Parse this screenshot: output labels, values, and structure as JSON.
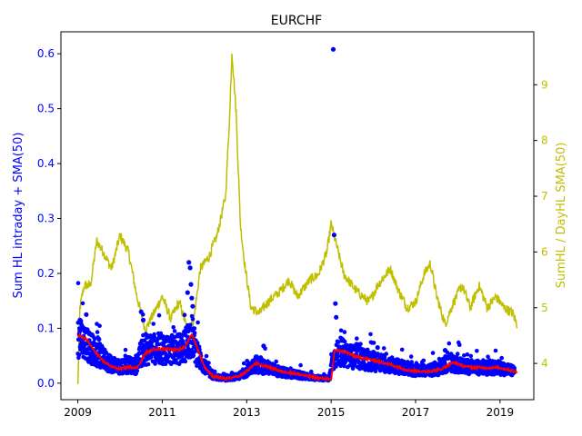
{
  "chart_data": {
    "type": "scatter",
    "title": "EURCHF",
    "xlabel": "",
    "ylabel": "Sum HL intraday + SMA(50)",
    "y2label": "SumHL / DayHL SMA(50)",
    "xlim": [
      2008.6,
      2019.8
    ],
    "ylim": [
      -0.03,
      0.64
    ],
    "y2lim": [
      3.35,
      9.95
    ],
    "x_ticks": [
      2009,
      2011,
      2013,
      2015,
      2017,
      2019
    ],
    "x_tick_labels": [
      "2009",
      "2011",
      "2013",
      "2015",
      "2017",
      "2019"
    ],
    "y_ticks": [
      0.0,
      0.1,
      0.2,
      0.3,
      0.4,
      0.5,
      0.6
    ],
    "y_tick_labels": [
      "0.0",
      "0.1",
      "0.2",
      "0.3",
      "0.4",
      "0.5",
      "0.6"
    ],
    "y2_ticks": [
      4,
      5,
      6,
      7,
      8,
      9
    ],
    "y2_tick_labels": [
      "4",
      "5",
      "6",
      "7",
      "8",
      "9"
    ],
    "grid": false,
    "legend": "none",
    "colors": {
      "scatter": "#0000ff",
      "sma": "#ff0000",
      "ratio": "#bfbf00",
      "left_axis_text": "#0000ff",
      "right_axis_text": "#bfbf00"
    },
    "series": [
      {
        "kind": "scatter",
        "axis": "left",
        "color": "#0000ff",
        "level_profile": [
          [
            2009.0,
            0.085
          ],
          [
            2009.3,
            0.065
          ],
          [
            2009.6,
            0.045
          ],
          [
            2009.9,
            0.03
          ],
          [
            2010.2,
            0.033
          ],
          [
            2010.4,
            0.03
          ],
          [
            2010.5,
            0.055
          ],
          [
            2010.7,
            0.062
          ],
          [
            2011.0,
            0.063
          ],
          [
            2011.3,
            0.06
          ],
          [
            2011.5,
            0.065
          ],
          [
            2011.7,
            0.088
          ],
          [
            2011.8,
            0.06
          ],
          [
            2011.95,
            0.035
          ],
          [
            2012.2,
            0.012
          ],
          [
            2012.5,
            0.008
          ],
          [
            2012.8,
            0.012
          ],
          [
            2013.0,
            0.022
          ],
          [
            2013.2,
            0.035
          ],
          [
            2013.5,
            0.028
          ],
          [
            2013.8,
            0.02
          ],
          [
            2014.2,
            0.015
          ],
          [
            2014.6,
            0.01
          ],
          [
            2014.95,
            0.008
          ],
          [
            2015.05,
            0.045
          ],
          [
            2015.2,
            0.058
          ],
          [
            2015.5,
            0.048
          ],
          [
            2016.0,
            0.04
          ],
          [
            2016.5,
            0.032
          ],
          [
            2017.0,
            0.022
          ],
          [
            2017.5,
            0.025
          ],
          [
            2017.8,
            0.038
          ],
          [
            2018.2,
            0.03
          ],
          [
            2018.6,
            0.028
          ],
          [
            2019.0,
            0.028
          ],
          [
            2019.35,
            0.022
          ]
        ],
        "outliers": [
          [
            2009.05,
            0.115
          ],
          [
            2009.2,
            0.125
          ],
          [
            2010.5,
            0.13
          ],
          [
            2010.55,
            0.115
          ],
          [
            2011.6,
            0.165
          ],
          [
            2011.63,
            0.22
          ],
          [
            2011.66,
            0.21
          ],
          [
            2011.68,
            0.18
          ],
          [
            2011.7,
            0.155
          ],
          [
            2011.72,
            0.14
          ],
          [
            2015.05,
            0.608
          ],
          [
            2015.07,
            0.27
          ],
          [
            2015.1,
            0.145
          ],
          [
            2015.12,
            0.12
          ],
          [
            2009.5,
            0.08
          ],
          [
            2013.4,
            0.068
          ],
          [
            2016.1,
            0.065
          ],
          [
            2017.7,
            0.06
          ]
        ]
      },
      {
        "kind": "line",
        "name": "SMA(50)",
        "axis": "left",
        "color": "#ff0000",
        "points": [
          [
            2009.0,
            0.088
          ],
          [
            2009.2,
            0.08
          ],
          [
            2009.4,
            0.058
          ],
          [
            2009.6,
            0.04
          ],
          [
            2009.8,
            0.03
          ],
          [
            2010.0,
            0.026
          ],
          [
            2010.2,
            0.03
          ],
          [
            2010.4,
            0.028
          ],
          [
            2010.5,
            0.04
          ],
          [
            2010.6,
            0.055
          ],
          [
            2010.8,
            0.062
          ],
          [
            2011.0,
            0.063
          ],
          [
            2011.2,
            0.062
          ],
          [
            2011.4,
            0.06
          ],
          [
            2011.55,
            0.068
          ],
          [
            2011.7,
            0.09
          ],
          [
            2011.85,
            0.06
          ],
          [
            2012.0,
            0.03
          ],
          [
            2012.2,
            0.012
          ],
          [
            2012.5,
            0.008
          ],
          [
            2012.8,
            0.012
          ],
          [
            2013.0,
            0.022
          ],
          [
            2013.2,
            0.036
          ],
          [
            2013.5,
            0.03
          ],
          [
            2013.8,
            0.022
          ],
          [
            2014.2,
            0.017
          ],
          [
            2014.6,
            0.01
          ],
          [
            2014.9,
            0.008
          ],
          [
            2015.0,
            0.005
          ],
          [
            2015.08,
            0.06
          ],
          [
            2015.3,
            0.058
          ],
          [
            2015.6,
            0.048
          ],
          [
            2016.0,
            0.042
          ],
          [
            2016.4,
            0.034
          ],
          [
            2016.8,
            0.024
          ],
          [
            2017.2,
            0.021
          ],
          [
            2017.6,
            0.025
          ],
          [
            2017.9,
            0.038
          ],
          [
            2018.2,
            0.03
          ],
          [
            2018.6,
            0.028
          ],
          [
            2019.0,
            0.028
          ],
          [
            2019.4,
            0.02
          ]
        ]
      },
      {
        "kind": "line",
        "name": "SumHL / DayHL SMA(50)",
        "axis": "right",
        "color": "#bfbf00",
        "points": [
          [
            2009.0,
            3.6
          ],
          [
            2009.05,
            5.0
          ],
          [
            2009.15,
            5.4
          ],
          [
            2009.3,
            5.4
          ],
          [
            2009.45,
            6.2
          ],
          [
            2009.6,
            6.0
          ],
          [
            2009.8,
            5.7
          ],
          [
            2010.0,
            6.3
          ],
          [
            2010.2,
            6.0
          ],
          [
            2010.4,
            5.2
          ],
          [
            2010.6,
            4.6
          ],
          [
            2010.8,
            4.9
          ],
          [
            2011.0,
            5.2
          ],
          [
            2011.2,
            4.8
          ],
          [
            2011.4,
            5.1
          ],
          [
            2011.6,
            4.6
          ],
          [
            2011.75,
            4.8
          ],
          [
            2011.9,
            5.7
          ],
          [
            2012.1,
            5.9
          ],
          [
            2012.3,
            6.3
          ],
          [
            2012.5,
            7.0
          ],
          [
            2012.6,
            8.5
          ],
          [
            2012.65,
            9.6
          ],
          [
            2012.75,
            8.5
          ],
          [
            2012.85,
            6.5
          ],
          [
            2012.95,
            5.8
          ],
          [
            2013.1,
            5.0
          ],
          [
            2013.3,
            4.9
          ],
          [
            2013.5,
            5.1
          ],
          [
            2013.8,
            5.3
          ],
          [
            2014.0,
            5.5
          ],
          [
            2014.2,
            5.2
          ],
          [
            2014.5,
            5.5
          ],
          [
            2014.7,
            5.6
          ],
          [
            2014.9,
            6.0
          ],
          [
            2015.0,
            6.5
          ],
          [
            2015.1,
            6.2
          ],
          [
            2015.3,
            5.6
          ],
          [
            2015.6,
            5.3
          ],
          [
            2015.9,
            5.1
          ],
          [
            2016.1,
            5.4
          ],
          [
            2016.4,
            5.7
          ],
          [
            2016.6,
            5.3
          ],
          [
            2016.8,
            5.0
          ],
          [
            2017.0,
            5.1
          ],
          [
            2017.2,
            5.6
          ],
          [
            2017.35,
            5.8
          ],
          [
            2017.5,
            5.2
          ],
          [
            2017.7,
            4.7
          ],
          [
            2017.9,
            5.1
          ],
          [
            2018.1,
            5.4
          ],
          [
            2018.3,
            5.0
          ],
          [
            2018.5,
            5.4
          ],
          [
            2018.7,
            5.0
          ],
          [
            2018.9,
            5.2
          ],
          [
            2019.1,
            5.0
          ],
          [
            2019.3,
            4.9
          ],
          [
            2019.4,
            4.7
          ]
        ]
      }
    ]
  }
}
